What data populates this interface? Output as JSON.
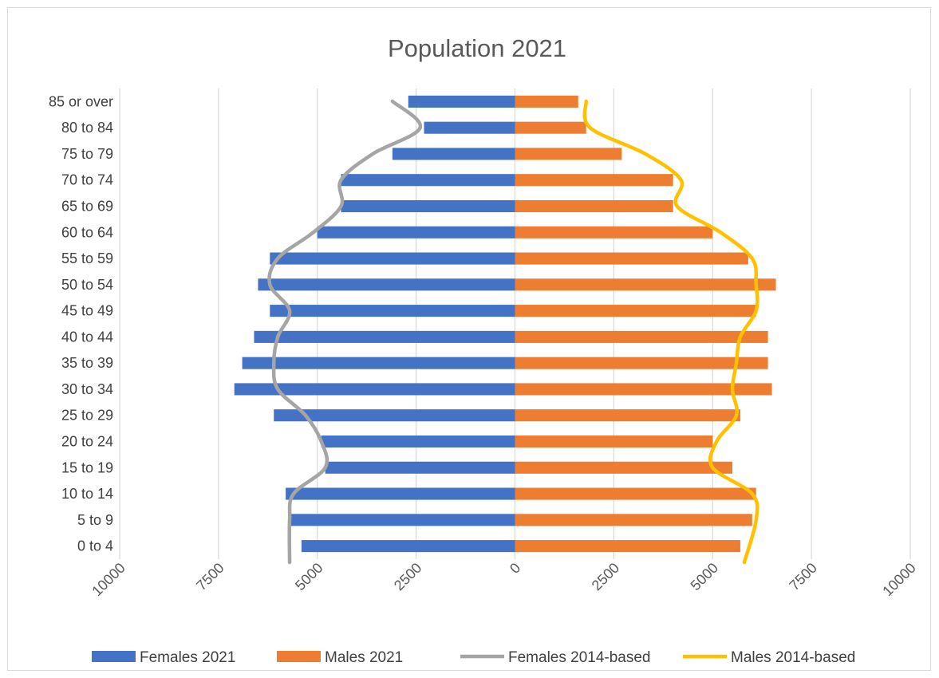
{
  "chart_data": {
    "type": "bar",
    "orientation": "horizontal-population-pyramid",
    "title": "Population 2021",
    "categories": [
      "0 to 4",
      "5 to 9",
      "10 to 14",
      "15 to 19",
      "20 to 24",
      "25 to 29",
      "30 to 34",
      "35 to 39",
      "40 to 44",
      "45 to 49",
      "50 to 54",
      "55 to 59",
      "60 to 64",
      "65 to 69",
      "70 to 74",
      "75 to 79",
      "80 to 84",
      "85 or over"
    ],
    "x_ticks": [
      "10000",
      "7500",
      "5000",
      "2500",
      "0",
      "2500",
      "5000",
      "7500",
      "10000"
    ],
    "xlim": [
      -10000,
      10000
    ],
    "grid": true,
    "legend_position": "bottom",
    "series": [
      {
        "name": "Females 2021",
        "kind": "bar",
        "color": "#4472c4",
        "values": [
          -5400,
          -5700,
          -5800,
          -4800,
          -4900,
          -6100,
          -7100,
          -6900,
          -6600,
          -6200,
          -6500,
          -6200,
          -5000,
          -4400,
          -4400,
          -3100,
          -2300,
          -2700
        ]
      },
      {
        "name": "Males 2021",
        "kind": "bar",
        "color": "#ed7d31",
        "values": [
          5700,
          6000,
          6100,
          5500,
          5000,
          5700,
          6500,
          6400,
          6400,
          6100,
          6600,
          5900,
          5000,
          4000,
          4000,
          2700,
          1800,
          1600
        ]
      },
      {
        "name": "Females 2014-based",
        "kind": "line",
        "color": "#a5a5a5",
        "values": [
          -5700,
          -5700,
          -5600,
          -4800,
          -4900,
          -5300,
          -6000,
          -6100,
          -6000,
          -5700,
          -6200,
          -6000,
          -5100,
          -4400,
          -4400,
          -3600,
          -2400,
          -3100
        ]
      },
      {
        "name": "Males 2014-based",
        "kind": "line",
        "color": "#ffc000",
        "values": [
          5800,
          6100,
          6000,
          5000,
          5100,
          5600,
          5500,
          5600,
          5700,
          6100,
          6100,
          6000,
          5200,
          4100,
          4200,
          3300,
          1900,
          1800
        ]
      }
    ]
  }
}
